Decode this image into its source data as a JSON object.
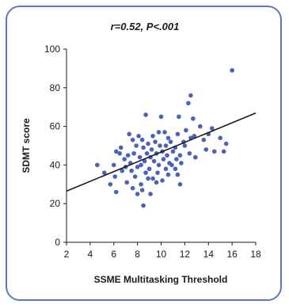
{
  "chart_data": {
    "type": "scatter",
    "title": "r=0.52, P<.001",
    "xlabel": "SSME Multitasking Threshold",
    "ylabel": "SDMT score",
    "xlim": [
      2,
      18
    ],
    "ylim": [
      0,
      100
    ],
    "xticks": [
      2,
      4,
      6,
      8,
      10,
      12,
      14,
      16,
      18
    ],
    "yticks": [
      0,
      20,
      40,
      60,
      80,
      100
    ],
    "grid": false,
    "colors": {
      "points": "#4a62b8",
      "trendline": "#1a1a1a",
      "frame": "#5b78b8"
    },
    "trendline": {
      "x": [
        2,
        18
      ],
      "y": [
        26.5,
        66.9
      ]
    },
    "points": [
      [
        16.0,
        89
      ],
      [
        12.5,
        76
      ],
      [
        12.3,
        72
      ],
      [
        11.5,
        65
      ],
      [
        8.7,
        66
      ],
      [
        10.0,
        65
      ],
      [
        12.7,
        64
      ],
      [
        13.3,
        60
      ],
      [
        14.3,
        59
      ],
      [
        12.1,
        58
      ],
      [
        9.8,
        57
      ],
      [
        10.3,
        57
      ],
      [
        11.4,
        56
      ],
      [
        7.3,
        56
      ],
      [
        8.1,
        55
      ],
      [
        9.3,
        55
      ],
      [
        10.6,
        54
      ],
      [
        12.8,
        55
      ],
      [
        14.0,
        56
      ],
      [
        15.0,
        54
      ],
      [
        7.6,
        53
      ],
      [
        8.4,
        53
      ],
      [
        9.5,
        52
      ],
      [
        10.8,
        52
      ],
      [
        11.9,
        52
      ],
      [
        12.5,
        54
      ],
      [
        13.6,
        53
      ],
      [
        15.5,
        51
      ],
      [
        8.9,
        51
      ],
      [
        9.9,
        50
      ],
      [
        10.4,
        50
      ],
      [
        11.2,
        49
      ],
      [
        12.0,
        50
      ],
      [
        7.9,
        50
      ],
      [
        6.6,
        49
      ],
      [
        8.5,
        49
      ],
      [
        9.2,
        48
      ],
      [
        10.1,
        47
      ],
      [
        11.0,
        47
      ],
      [
        13.8,
        48
      ],
      [
        14.5,
        47
      ],
      [
        15.3,
        47
      ],
      [
        6.2,
        47
      ],
      [
        6.5,
        46
      ],
      [
        7.7,
        46
      ],
      [
        8.8,
        46
      ],
      [
        9.6,
        46
      ],
      [
        10.5,
        45
      ],
      [
        11.6,
        45
      ],
      [
        12.4,
        46
      ],
      [
        7.2,
        45
      ],
      [
        8.2,
        44
      ],
      [
        9.1,
        44
      ],
      [
        10.2,
        43
      ],
      [
        11.3,
        43
      ],
      [
        12.9,
        44
      ],
      [
        6.9,
        43
      ],
      [
        8.6,
        42
      ],
      [
        9.4,
        42
      ],
      [
        10.7,
        41
      ],
      [
        11.7,
        41
      ],
      [
        7.4,
        41
      ],
      [
        8.3,
        40
      ],
      [
        9.8,
        40
      ],
      [
        10.9,
        40
      ],
      [
        4.6,
        40
      ],
      [
        6.0,
        40
      ],
      [
        7.0,
        39
      ],
      [
        8.0,
        39
      ],
      [
        9.0,
        38
      ],
      [
        10.4,
        38
      ],
      [
        11.2,
        38
      ],
      [
        5.2,
        36
      ],
      [
        6.7,
        37
      ],
      [
        7.5,
        37
      ],
      [
        8.7,
        36
      ],
      [
        9.7,
        36
      ],
      [
        10.6,
        35
      ],
      [
        11.4,
        35
      ],
      [
        6.1,
        34
      ],
      [
        7.8,
        34
      ],
      [
        8.9,
        33
      ],
      [
        9.3,
        33
      ],
      [
        10.1,
        32
      ],
      [
        5.7,
        30
      ],
      [
        7.1,
        31
      ],
      [
        8.3,
        30
      ],
      [
        9.6,
        31
      ],
      [
        11.6,
        30
      ],
      [
        7.6,
        28
      ],
      [
        8.4,
        27
      ],
      [
        6.2,
        26
      ],
      [
        8.0,
        25
      ],
      [
        9.1,
        25
      ],
      [
        8.5,
        19
      ]
    ]
  }
}
